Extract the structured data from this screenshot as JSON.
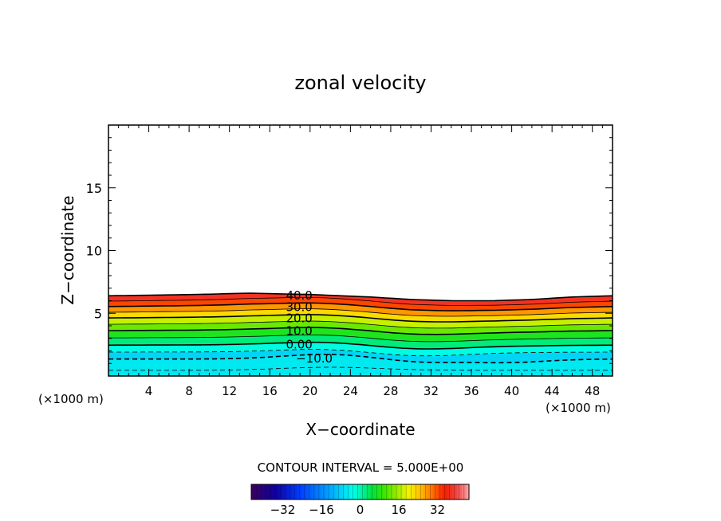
{
  "chart_data": {
    "type": "heatmap",
    "title": "zonal velocity",
    "xlabel": "X−coordinate",
    "ylabel": "Z−coordinate",
    "x_unit_left": "(×1000 m)",
    "x_unit_right": "(×1000 m)",
    "xlim": [
      0,
      50
    ],
    "ylim": [
      0,
      20
    ],
    "x_ticks": [
      4,
      8,
      12,
      16,
      20,
      24,
      28,
      32,
      36,
      40,
      44,
      48
    ],
    "y_ticks": [
      5,
      10,
      15
    ],
    "contour_interval_text": "CONTOUR INTERVAL = 5.000E+00",
    "contour_interval": 5,
    "field_top_height": [
      [
        0,
        6.4
      ],
      [
        8,
        6.5
      ],
      [
        14,
        6.6
      ],
      [
        20,
        6.5
      ],
      [
        26,
        6.3
      ],
      [
        30,
        6.1
      ],
      [
        34,
        6.0
      ],
      [
        38,
        6.0
      ],
      [
        42,
        6.1
      ],
      [
        46,
        6.3
      ],
      [
        50,
        6.4
      ]
    ],
    "contour_labels": [
      {
        "text": "40.0",
        "value": 40,
        "x": 17.6,
        "y": 6.4
      },
      {
        "text": "30.0",
        "value": 30,
        "x": 17.6,
        "y": 5.5
      },
      {
        "text": "20.0",
        "value": 20,
        "x": 17.6,
        "y": 4.6
      },
      {
        "text": "10.0",
        "value": 10,
        "x": 17.6,
        "y": 3.6
      },
      {
        "text": "0.00",
        "value": 0,
        "x": 17.6,
        "y": 2.5
      },
      {
        "text": "−10.0",
        "value": -10,
        "x": 18.6,
        "y": 1.4
      }
    ],
    "colorbar": {
      "ticks": [
        {
          "value": -32,
          "label": "−32"
        },
        {
          "value": -16,
          "label": "−16"
        },
        {
          "value": 0,
          "label": "0"
        },
        {
          "value": 16,
          "label": "16"
        },
        {
          "value": 32,
          "label": "32"
        }
      ],
      "min": -45,
      "max": 45
    }
  }
}
